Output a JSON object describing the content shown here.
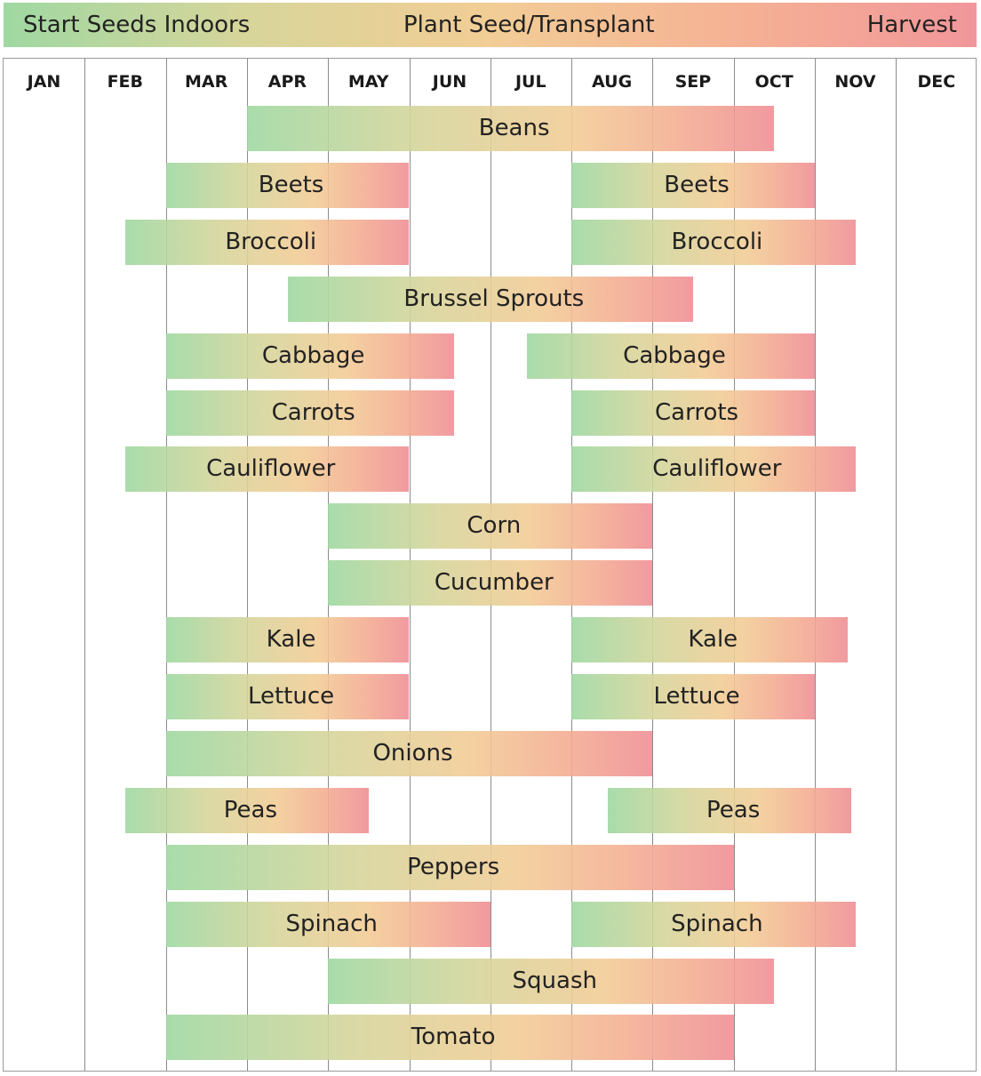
{
  "chart_data": {
    "type": "gantt",
    "title": "",
    "legend": [
      "Start Seeds Indoors",
      "Plant Seed/Transplant",
      "Harvest"
    ],
    "legend_placement": "top",
    "months": [
      "JAN",
      "FEB",
      "MAR",
      "APR",
      "MAY",
      "JUN",
      "JUL",
      "AUG",
      "SEP",
      "OCT",
      "NOV",
      "DEC"
    ],
    "units": "months (0 = start of JAN, 12 = end of DEC)",
    "crops": [
      {
        "name": "Beans",
        "label": "Beans",
        "start": 3.0,
        "end": 9.5
      },
      {
        "name": "Beets (spring)",
        "label": "Beets",
        "start": 2.0,
        "end": 5.0
      },
      {
        "name": "Beets (fall)",
        "label": "Beets",
        "start": 7.0,
        "end": 10.0
      },
      {
        "name": "Broccoli (spring)",
        "label": "Broccoli",
        "start": 1.5,
        "end": 5.0
      },
      {
        "name": "Broccoli (fall)",
        "label": "Broccoli",
        "start": 7.0,
        "end": 10.5
      },
      {
        "name": "Brussel Sprouts",
        "label": "Brussel Sprouts",
        "start": 3.5,
        "end": 8.5
      },
      {
        "name": "Cabbage (spring)",
        "label": "Cabbage",
        "start": 2.0,
        "end": 5.55
      },
      {
        "name": "Cabbage (fall)",
        "label": "Cabbage",
        "start": 6.45,
        "end": 10.0
      },
      {
        "name": "Carrots (spring)",
        "label": "Carrots",
        "start": 2.0,
        "end": 5.55
      },
      {
        "name": "Carrots (fall)",
        "label": "Carrots",
        "start": 7.0,
        "end": 10.0
      },
      {
        "name": "Cauliflower (spring)",
        "label": "Cauliflower",
        "start": 1.5,
        "end": 5.0
      },
      {
        "name": "Cauliflower (fall)",
        "label": "Cauliflower",
        "start": 7.0,
        "end": 10.5
      },
      {
        "name": "Corn",
        "label": "Corn",
        "start": 4.0,
        "end": 8.0
      },
      {
        "name": "Cucumber",
        "label": "Cucumber",
        "start": 4.0,
        "end": 8.0
      },
      {
        "name": "Kale (spring)",
        "label": "Kale",
        "start": 2.0,
        "end": 5.0
      },
      {
        "name": "Kale (fall)",
        "label": "Kale",
        "start": 7.0,
        "end": 10.4
      },
      {
        "name": "Lettuce (spring)",
        "label": "Lettuce",
        "start": 2.0,
        "end": 5.0
      },
      {
        "name": "Lettuce (fall)",
        "label": "Lettuce",
        "start": 7.0,
        "end": 10.0
      },
      {
        "name": "Onions",
        "label": "Onions",
        "start": 2.0,
        "end": 8.0
      },
      {
        "name": "Peas (spring)",
        "label": "Peas",
        "start": 1.5,
        "end": 4.5
      },
      {
        "name": "Peas (fall)",
        "label": "Peas",
        "start": 7.45,
        "end": 10.45
      },
      {
        "name": "Peppers",
        "label": "Peppers",
        "start": 2.0,
        "end": 9.0
      },
      {
        "name": "Spinach (spring)",
        "label": "Spinach",
        "start": 2.0,
        "end": 6.0
      },
      {
        "name": "Spinach (fall)",
        "label": "Spinach",
        "start": 7.0,
        "end": 10.5
      },
      {
        "name": "Squash",
        "label": "Squash",
        "start": 4.0,
        "end": 9.5
      },
      {
        "name": "Tomato",
        "label": "Tomato",
        "start": 2.0,
        "end": 9.0
      }
    ]
  }
}
